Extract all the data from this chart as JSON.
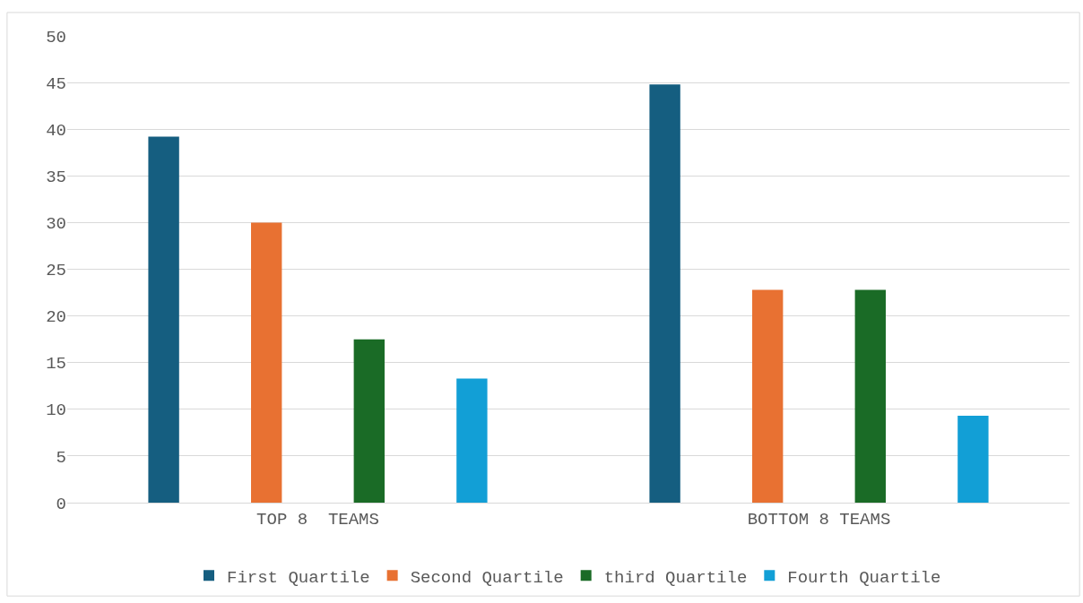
{
  "chart_data": {
    "type": "bar",
    "categories": [
      "TOP 8  TEAMS",
      "BOTTOM 8 TEAMS"
    ],
    "series": [
      {
        "name": "First Quartile",
        "color": "#155e80",
        "values": [
          39.2,
          44.8
        ]
      },
      {
        "name": "Second Quartile",
        "color": "#e87132",
        "values": [
          30,
          22.8
        ]
      },
      {
        "name": "third Quartile",
        "color": "#1a6b26",
        "values": [
          17.5,
          22.8
        ]
      },
      {
        "name": "Fourth Quartile",
        "color": "#129fd6",
        "values": [
          13.3,
          9.3
        ]
      }
    ],
    "ylim": [
      0,
      50
    ],
    "yticks": [
      0,
      5,
      10,
      15,
      20,
      25,
      30,
      35,
      40,
      45,
      50
    ],
    "grid": "y",
    "legend": "bottom"
  }
}
